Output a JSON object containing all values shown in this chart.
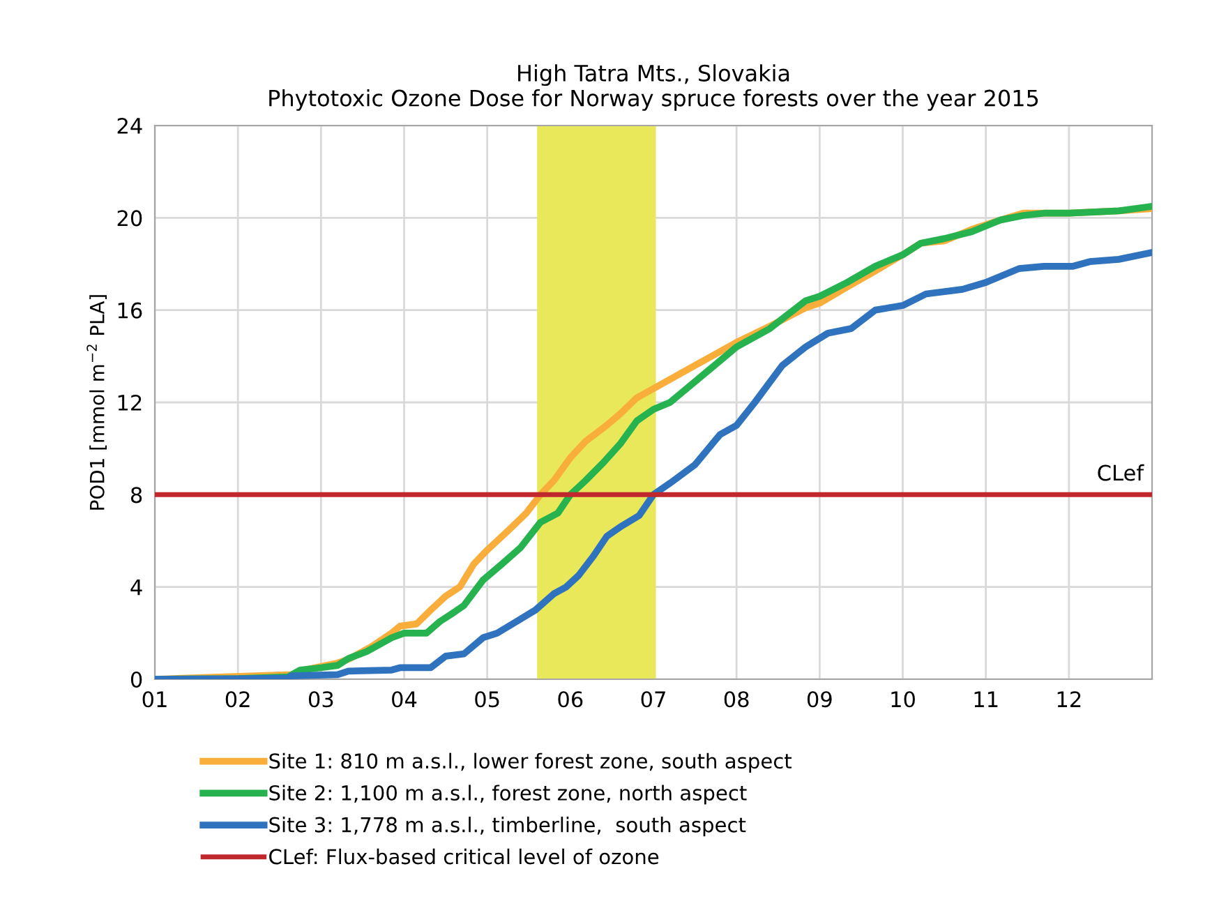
{
  "chart_data": {
    "type": "line",
    "title": "High Tatra Mts., Slovakia\nPhytotoxic Ozone Dose for Norway spruce forests over the year 2015",
    "ylabel": "POD1 [mmol m$^{−2}$ PLA]",
    "series": [
      {
        "name": "Site 1: 810 m a.s.l., lower forest zone, south aspect",
        "color": "#f9ae3b",
        "x": [
          1.0,
          2.65,
          2.8,
          3.0,
          3.2,
          3.35,
          3.6,
          3.85,
          3.95,
          4.15,
          4.32,
          4.5,
          4.67,
          4.84,
          5.0,
          5.24,
          5.47,
          5.64,
          5.8,
          6.0,
          6.18,
          6.4,
          6.6,
          6.8,
          7.0,
          7.5,
          8.0,
          8.4,
          8.83,
          9.0,
          9.33,
          9.67,
          10.0,
          10.22,
          10.5,
          10.83,
          11.17,
          11.45,
          11.7,
          12.0,
          12.6,
          13.0
        ],
        "values": [
          0,
          0.2,
          0.4,
          0.55,
          0.7,
          0.9,
          1.4,
          2.0,
          2.3,
          2.4,
          3.0,
          3.6,
          4.0,
          5.0,
          5.6,
          6.4,
          7.2,
          8.0,
          8.6,
          9.6,
          10.3,
          10.9,
          11.5,
          12.2,
          12.6,
          13.6,
          14.6,
          15.3,
          16.1,
          16.3,
          17.0,
          17.7,
          18.4,
          18.9,
          19.0,
          19.5,
          19.9,
          20.2,
          20.2,
          20.2,
          20.3,
          20.4
        ]
      },
      {
        "name": "Site 2: 1,100 m a.s.l., forest zone, north aspect",
        "color": "#25b24f",
        "x": [
          1.0,
          2.0,
          2.6,
          2.75,
          3.0,
          3.2,
          3.33,
          3.55,
          3.85,
          4.0,
          4.27,
          4.43,
          4.6,
          4.72,
          4.95,
          5.18,
          5.4,
          5.64,
          5.85,
          6.0,
          6.18,
          6.4,
          6.6,
          6.8,
          7.0,
          7.2,
          7.5,
          8.0,
          8.4,
          8.83,
          9.0,
          9.33,
          9.67,
          10.0,
          10.22,
          10.5,
          10.83,
          11.17,
          11.45,
          11.7,
          12.0,
          12.6,
          13.0
        ],
        "values": [
          0,
          0.03,
          0.1,
          0.4,
          0.5,
          0.6,
          0.9,
          1.2,
          1.8,
          2.0,
          2.0,
          2.5,
          2.9,
          3.2,
          4.3,
          5.0,
          5.7,
          6.8,
          7.2,
          8.0,
          8.6,
          9.4,
          10.2,
          11.2,
          11.7,
          12.0,
          12.9,
          14.4,
          15.2,
          16.4,
          16.6,
          17.2,
          17.9,
          18.4,
          18.9,
          19.1,
          19.4,
          19.9,
          20.1,
          20.2,
          20.2,
          20.3,
          20.5
        ]
      },
      {
        "name": "Site 3: 1,778 m a.s.l., timberline,  south aspect",
        "color": "#2f73bf",
        "x": [
          1.0,
          2.0,
          2.6,
          2.65,
          3.2,
          3.33,
          3.85,
          3.95,
          4.32,
          4.5,
          4.72,
          4.95,
          5.12,
          5.35,
          5.58,
          5.8,
          5.95,
          6.1,
          6.27,
          6.44,
          6.6,
          6.83,
          7.0,
          7.2,
          7.5,
          7.8,
          8.0,
          8.22,
          8.55,
          8.83,
          9.1,
          9.38,
          9.67,
          10.0,
          10.28,
          10.72,
          11.0,
          11.4,
          11.7,
          12.05,
          12.25,
          12.6,
          13.0
        ],
        "values": [
          0,
          0.02,
          0.05,
          0.15,
          0.2,
          0.35,
          0.4,
          0.5,
          0.5,
          1.0,
          1.1,
          1.8,
          2.0,
          2.5,
          3.0,
          3.7,
          4.0,
          4.5,
          5.3,
          6.2,
          6.6,
          7.1,
          8.0,
          8.5,
          9.3,
          10.6,
          11.0,
          12.0,
          13.6,
          14.4,
          15.0,
          15.2,
          16.0,
          16.2,
          16.7,
          16.9,
          17.2,
          17.8,
          17.9,
          17.9,
          18.1,
          18.2,
          18.5
        ]
      }
    ],
    "ref_lines": [
      {
        "axis": "y",
        "value": 8,
        "label": "CLef: Flux-based critical level of ozone",
        "color": "#c0282d"
      }
    ],
    "bands": [
      {
        "axis": "x",
        "from": 5.6,
        "to": 7.03,
        "color": "#e8e85a"
      }
    ],
    "annotations": [
      {
        "text": "CLef",
        "x": 12.9,
        "y": 8
      }
    ],
    "xlim": [
      1,
      13
    ],
    "xticks": [
      {
        "value": 1,
        "label": "01"
      },
      {
        "value": 2,
        "label": "02"
      },
      {
        "value": 3,
        "label": "03"
      },
      {
        "value": 4,
        "label": "04"
      },
      {
        "value": 5,
        "label": "05"
      },
      {
        "value": 6,
        "label": "06"
      },
      {
        "value": 7,
        "label": "07"
      },
      {
        "value": 8,
        "label": "08"
      },
      {
        "value": 9,
        "label": "09"
      },
      {
        "value": 10,
        "label": "10"
      },
      {
        "value": 11,
        "label": "11"
      },
      {
        "value": 12,
        "label": "12"
      }
    ],
    "ylim": [
      0,
      24
    ],
    "yticks": [
      0,
      4,
      8,
      12,
      16,
      20,
      24
    ],
    "grid": true,
    "legend": "bottom",
    "marker": "none",
    "line_style": "solid"
  }
}
